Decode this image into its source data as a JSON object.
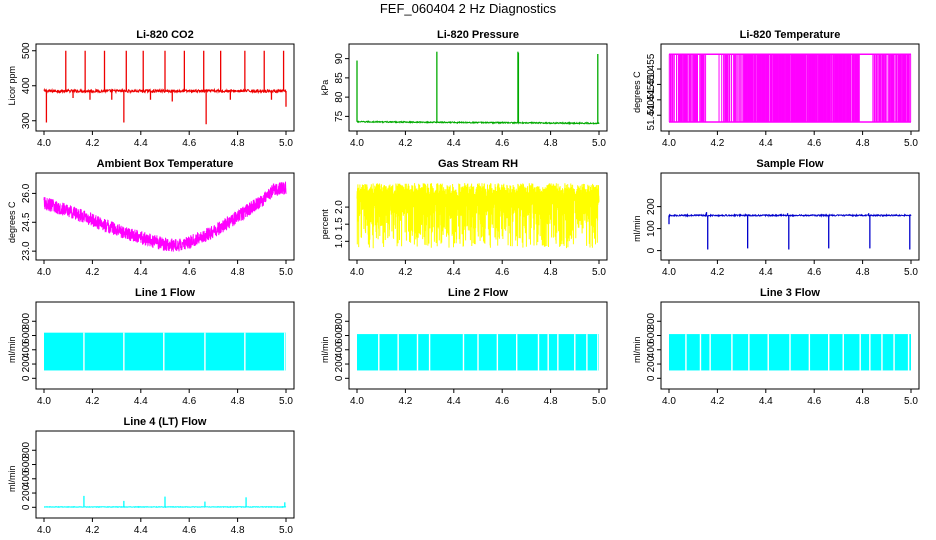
{
  "figure": {
    "title": "FEF_060404  2 Hz Diagnostics"
  },
  "chart_data": [
    {
      "type": "line",
      "title": "Li-820 CO2",
      "ylabel": "Licor ppm",
      "color": "#ee0000",
      "xlim": [
        4.0,
        5.0
      ],
      "ylim": [
        285,
        505
      ],
      "x_ticks": [
        "4.0",
        "4.2",
        "4.4",
        "4.6",
        "4.8",
        "5.0"
      ],
      "y_ticks": [
        {
          "v": 300,
          "label": "300"
        },
        {
          "v": 400,
          "label": "400"
        },
        {
          "v": 500,
          "label": "500"
        }
      ],
      "series": [
        {
          "style": "baseline-spikes",
          "base": 385,
          "noise": 4,
          "slope": 0,
          "spikes": [
            [
              4.01,
              295
            ],
            [
              4.09,
              500
            ],
            [
              4.12,
              365
            ],
            [
              4.17,
              500
            ],
            [
              4.19,
              360
            ],
            [
              4.25,
              500
            ],
            [
              4.28,
              360
            ],
            [
              4.33,
              295
            ],
            [
              4.34,
              500
            ],
            [
              4.41,
              500
            ],
            [
              4.44,
              360
            ],
            [
              4.5,
              500
            ],
            [
              4.53,
              355
            ],
            [
              4.58,
              500
            ],
            [
              4.66,
              500
            ],
            [
              4.67,
              290
            ],
            [
              4.73,
              500
            ],
            [
              4.77,
              360
            ],
            [
              4.83,
              500
            ],
            [
              4.91,
              500
            ],
            [
              4.94,
              360
            ],
            [
              4.99,
              500
            ],
            [
              5.0,
              340
            ]
          ]
        }
      ]
    },
    {
      "type": "line",
      "title": "Li-820 Pressure",
      "ylabel": "kPa",
      "color": "#00aa00",
      "xlim": [
        4.0,
        5.0
      ],
      "ylim": [
        72.5,
        92.5
      ],
      "x_ticks": [
        "4.0",
        "4.2",
        "4.4",
        "4.6",
        "4.8",
        "5.0"
      ],
      "y_ticks": [
        {
          "v": 75,
          "label": "75"
        },
        {
          "v": 80,
          "label": "80"
        },
        {
          "v": 85,
          "label": "85"
        },
        {
          "v": 90,
          "label": "90"
        }
      ],
      "series": [
        {
          "style": "baseline-spikes",
          "base": 73.6,
          "noise": 0.15,
          "slope": -0.4,
          "spikes": [
            [
              4.0,
              89.5
            ],
            [
              4.33,
              91.8
            ],
            [
              4.665,
              91.8
            ],
            [
              4.667,
              91.5
            ],
            [
              4.995,
              91.2
            ]
          ]
        }
      ]
    },
    {
      "type": "line",
      "title": "Li-820 Temperature",
      "ylabel": "degrees C",
      "color": "#ff00ff",
      "xlim": [
        4.0,
        5.0
      ],
      "ylim": [
        51.4365,
        51.4615
      ],
      "x_ticks": [
        "4.0",
        "4.2",
        "4.4",
        "4.6",
        "4.8",
        "5.0"
      ],
      "y_ticks": [
        {
          "v": 51.44,
          "label": "51.440"
        },
        {
          "v": 51.445,
          "label": "51.445"
        },
        {
          "v": 51.45,
          "label": "51.450"
        },
        {
          "v": 51.455,
          "label": "51.455"
        }
      ],
      "series": [
        {
          "style": "bands",
          "low": 51.4378,
          "high": 51.4598,
          "segments": [
            [
              4.0,
              4.155,
              0.7
            ],
            [
              4.155,
              4.225,
              0.1
            ],
            [
              4.225,
              4.305,
              0.55
            ],
            [
              4.305,
              4.79,
              0.95
            ],
            [
              4.79,
              4.84,
              0.0
            ],
            [
              4.84,
              5.0,
              0.8
            ]
          ]
        }
      ]
    },
    {
      "type": "line",
      "title": "Ambient Box Temperature",
      "ylabel": "degrees C",
      "color": "#ff00ff",
      "xlim": [
        4.0,
        5.0
      ],
      "ylim": [
        22.8,
        26.8
      ],
      "x_ticks": [
        "4.0",
        "4.2",
        "4.4",
        "4.6",
        "4.8",
        "5.0"
      ],
      "y_ticks": [
        {
          "v": 23.0,
          "label": "23.0"
        },
        {
          "v": 24.5,
          "label": "24.5"
        },
        {
          "v": 26.0,
          "label": "26.0"
        }
      ],
      "series": [
        {
          "style": "noisy-curve",
          "noise": 0.35,
          "curve": [
            [
              4.0,
              25.5
            ],
            [
              4.1,
              25.1
            ],
            [
              4.2,
              24.6
            ],
            [
              4.3,
              24.1
            ],
            [
              4.4,
              23.7
            ],
            [
              4.5,
              23.35
            ],
            [
              4.55,
              23.3
            ],
            [
              4.6,
              23.45
            ],
            [
              4.7,
              24.0
            ],
            [
              4.8,
              24.8
            ],
            [
              4.9,
              25.6
            ],
            [
              4.95,
              26.2
            ],
            [
              5.0,
              26.3
            ]
          ]
        }
      ]
    },
    {
      "type": "line",
      "title": "Gas Stream RH",
      "ylabel": "percent",
      "color": "#ffff00",
      "xlim": [
        4.0,
        5.0
      ],
      "ylim": [
        0.6,
        2.85
      ],
      "x_ticks": [
        "4.0",
        "4.2",
        "4.4",
        "4.6",
        "4.8",
        "5.0"
      ],
      "y_ticks": [
        {
          "v": 1.0,
          "label": "1.0"
        },
        {
          "v": 1.5,
          "label": "1.5"
        },
        {
          "v": 2.0,
          "label": "2.0"
        }
      ],
      "series": [
        {
          "style": "noisy-band",
          "low": 0.8,
          "high": 2.7,
          "core_low": 1.7,
          "core_high": 2.3
        }
      ]
    },
    {
      "type": "line",
      "title": "Sample Flow",
      "ylabel": "ml/min",
      "color": "#0000cc",
      "xlim": [
        4.0,
        5.0
      ],
      "ylim": [
        -20,
        330
      ],
      "x_ticks": [
        "4.0",
        "4.2",
        "4.4",
        "4.6",
        "4.8",
        "5.0"
      ],
      "y_ticks": [
        {
          "v": 0,
          "label": "0"
        },
        {
          "v": 100,
          "label": "100"
        },
        {
          "v": 200,
          "label": "200"
        }
      ],
      "series": [
        {
          "style": "baseline-spikes",
          "base": 160,
          "noise": 3,
          "slope": 0,
          "spikes": [
            [
              4.0,
              120
            ],
            [
              4.155,
              175
            ],
            [
              4.16,
              5
            ],
            [
              4.325,
              10
            ],
            [
              4.49,
              170
            ],
            [
              4.495,
              5
            ],
            [
              4.66,
              10
            ],
            [
              4.825,
              170
            ],
            [
              4.83,
              10
            ],
            [
              4.99,
              160
            ],
            [
              4.995,
              5
            ]
          ]
        }
      ]
    },
    {
      "type": "line",
      "title": "Line 1 Flow",
      "ylabel": "ml/min",
      "color": "#00ffff",
      "xlim": [
        4.0,
        5.0
      ],
      "ylim": [
        -80,
        1000
      ],
      "x_ticks": [
        "4.0",
        "4.2",
        "4.4",
        "4.6",
        "4.8",
        "5.0"
      ],
      "y_ticks": [
        {
          "v": 0,
          "label": "0"
        },
        {
          "v": 200,
          "label": "200"
        },
        {
          "v": 400,
          "label": "400"
        },
        {
          "v": 600,
          "label": "600"
        },
        {
          "v": 800,
          "label": "800"
        }
      ],
      "series": [
        {
          "style": "flow-block",
          "low": 110,
          "high": 640,
          "gaps": [
            4.165,
            4.33,
            4.495,
            4.665,
            4.83,
            4.995
          ]
        }
      ]
    },
    {
      "type": "line",
      "title": "Line 2 Flow",
      "ylabel": "ml/min",
      "color": "#00ffff",
      "xlim": [
        4.0,
        5.0
      ],
      "ylim": [
        -80,
        1000
      ],
      "x_ticks": [
        "4.0",
        "4.2",
        "4.4",
        "4.6",
        "4.8",
        "5.0"
      ],
      "y_ticks": [
        {
          "v": 0,
          "label": "0"
        },
        {
          "v": 200,
          "label": "200"
        },
        {
          "v": 400,
          "label": "400"
        },
        {
          "v": 600,
          "label": "600"
        },
        {
          "v": 800,
          "label": "800"
        }
      ],
      "series": [
        {
          "style": "flow-block",
          "low": 110,
          "high": 620,
          "gaps": [
            4.09,
            4.17,
            4.25,
            4.3,
            4.44,
            4.5,
            4.58,
            4.66,
            4.75,
            4.79,
            4.83,
            4.9,
            4.95,
            4.995
          ]
        }
      ]
    },
    {
      "type": "line",
      "title": "Line 3 Flow",
      "ylabel": "ml/min",
      "color": "#00ffff",
      "xlim": [
        4.0,
        5.0
      ],
      "ylim": [
        -80,
        1000
      ],
      "x_ticks": [
        "4.0",
        "4.2",
        "4.4",
        "4.6",
        "4.8",
        "5.0"
      ],
      "y_ticks": [
        {
          "v": 0,
          "label": "0"
        },
        {
          "v": 200,
          "label": "200"
        },
        {
          "v": 400,
          "label": "400"
        },
        {
          "v": 600,
          "label": "600"
        },
        {
          "v": 800,
          "label": "800"
        }
      ],
      "series": [
        {
          "style": "flow-block",
          "low": 110,
          "high": 620,
          "gaps": [
            4.07,
            4.13,
            4.17,
            4.26,
            4.33,
            4.41,
            4.5,
            4.58,
            4.66,
            4.72,
            4.79,
            4.83,
            4.88,
            4.93,
            4.99
          ]
        }
      ]
    },
    {
      "type": "line",
      "title": "Line 4 (LT) Flow",
      "ylabel": "ml/min",
      "color": "#00ffff",
      "xlim": [
        4.0,
        5.0
      ],
      "ylim": [
        -80,
        1000
      ],
      "x_ticks": [
        "4.0",
        "4.2",
        "4.4",
        "4.6",
        "4.8",
        "5.0"
      ],
      "y_ticks": [
        {
          "v": 0,
          "label": "0"
        },
        {
          "v": 200,
          "label": "200"
        },
        {
          "v": 400,
          "label": "400"
        },
        {
          "v": 600,
          "label": "600"
        },
        {
          "v": 800,
          "label": "800"
        }
      ],
      "series": [
        {
          "style": "baseline-spikes",
          "base": 5,
          "noise": 4,
          "slope": 0,
          "spikes": [
            [
              4.165,
              160
            ],
            [
              4.33,
              90
            ],
            [
              4.5,
              150
            ],
            [
              4.665,
              80
            ],
            [
              4.835,
              140
            ],
            [
              4.995,
              70
            ]
          ]
        }
      ]
    }
  ]
}
